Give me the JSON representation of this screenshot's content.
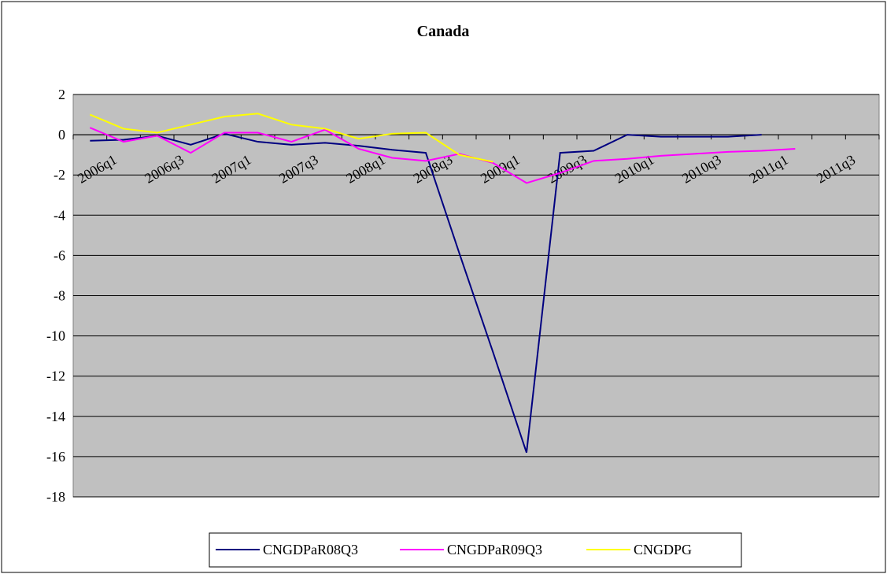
{
  "chart_data": {
    "type": "line",
    "title": "Canada",
    "categories": [
      "2006q1",
      null,
      "2006q3",
      null,
      "2007q1",
      null,
      "2007q3",
      null,
      "2008q1",
      null,
      "2008q3",
      null,
      "2009q1",
      null,
      "2009q3",
      null,
      "2010q1",
      null,
      "2010q3",
      null,
      "2011q1",
      null,
      "2011q3",
      null
    ],
    "series": [
      {
        "name": "CNGDPaR08Q3",
        "color": "#000080",
        "values": [
          -0.3,
          -0.25,
          -0.05,
          -0.5,
          0.05,
          -0.35,
          -0.5,
          -0.4,
          -0.55,
          -0.75,
          -0.9,
          -5.9,
          -10.8,
          -15.8,
          -0.9,
          -0.8,
          0,
          -0.1,
          -0.1,
          -0.1,
          0,
          null,
          null,
          null
        ]
      },
      {
        "name": "CNGDPaR09Q3",
        "color": "#ff00ff",
        "values": [
          0.35,
          -0.35,
          -0.05,
          -0.9,
          0.1,
          0.1,
          -0.35,
          0.25,
          -0.7,
          -1.15,
          -1.3,
          -0.95,
          -1.4,
          -2.4,
          -1.9,
          -1.3,
          -1.2,
          -1.05,
          -0.95,
          -0.85,
          -0.8,
          -0.7,
          null,
          null
        ]
      },
      {
        "name": "CNGDPG",
        "color": "#ffff00",
        "values": [
          1.0,
          0.3,
          0.1,
          0.5,
          0.9,
          1.05,
          0.5,
          0.3,
          -0.2,
          0.05,
          0.1,
          -1.0,
          -1.35,
          null,
          null,
          null,
          null,
          null,
          null,
          null,
          null,
          null,
          null,
          null
        ]
      }
    ],
    "ylim": [
      -18,
      2
    ],
    "yticks": [
      -18,
      -16,
      -14,
      -12,
      -10,
      -8,
      -6,
      -4,
      -2,
      0,
      2
    ],
    "grid": true,
    "legend": "bottom"
  }
}
